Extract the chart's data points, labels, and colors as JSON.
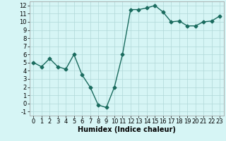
{
  "x": [
    0,
    1,
    2,
    3,
    4,
    5,
    6,
    7,
    8,
    9,
    10,
    11,
    12,
    13,
    14,
    15,
    16,
    17,
    18,
    19,
    20,
    21,
    22,
    23
  ],
  "y": [
    5,
    4.5,
    5.5,
    4.5,
    4.2,
    6,
    3.5,
    2,
    -0.2,
    -0.5,
    2,
    6,
    11.5,
    11.5,
    11.7,
    12,
    11.2,
    10,
    10.1,
    9.5,
    9.5,
    10,
    10.1,
    10.7
  ],
  "line_color": "#1a6b5e",
  "marker": "D",
  "marker_size": 2.5,
  "bg_color": "#d6f5f5",
  "grid_color": "#b0d8d8",
  "xlabel": "Humidex (Indice chaleur)",
  "xlabel_fontsize": 7,
  "xlim": [
    -0.5,
    23.5
  ],
  "ylim": [
    -1.5,
    12.5
  ],
  "yticks": [
    -1,
    0,
    1,
    2,
    3,
    4,
    5,
    6,
    7,
    8,
    9,
    10,
    11,
    12
  ],
  "xticks": [
    0,
    1,
    2,
    3,
    4,
    5,
    6,
    7,
    8,
    9,
    10,
    11,
    12,
    13,
    14,
    15,
    16,
    17,
    18,
    19,
    20,
    21,
    22,
    23
  ],
  "tick_fontsize": 6,
  "linewidth": 1.0
}
